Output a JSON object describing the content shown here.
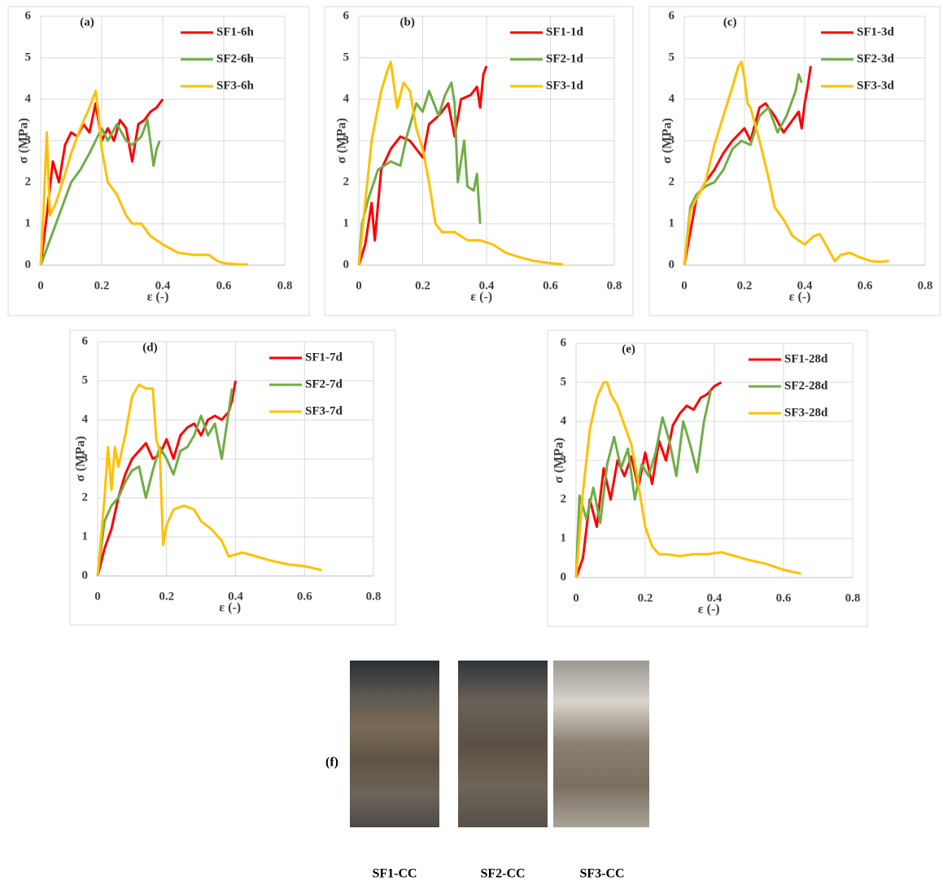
{
  "chart_data": [
    {
      "type": "line",
      "title": "(a)",
      "x_label": "ε (-)",
      "y_label": "σ (MPa)",
      "xlim": [
        0,
        0.8
      ],
      "xticks": [
        0,
        0.2,
        0.4,
        0.6,
        0.8
      ],
      "ylim": [
        0,
        6
      ],
      "yticks": [
        0,
        1,
        2,
        3,
        4,
        5,
        6
      ],
      "grid": true,
      "legend": "top-right",
      "series": [
        {
          "name": "SF1-6h",
          "color": "#ff0000",
          "x": [
            0,
            0.02,
            0.04,
            0.06,
            0.08,
            0.1,
            0.12,
            0.14,
            0.16,
            0.18,
            0.2,
            0.22,
            0.24,
            0.26,
            0.28,
            0.3,
            0.32,
            0.34,
            0.36,
            0.38,
            0.4
          ],
          "values": [
            0,
            1.2,
            2.5,
            2.0,
            2.9,
            3.2,
            3.1,
            3.4,
            3.2,
            3.9,
            3.0,
            3.3,
            3.0,
            3.5,
            3.3,
            2.5,
            3.4,
            3.5,
            3.7,
            3.8,
            4.0
          ]
        },
        {
          "name": "SF2-6h",
          "color": "#70ad47",
          "x": [
            0,
            0.02,
            0.05,
            0.08,
            0.1,
            0.13,
            0.16,
            0.18,
            0.2,
            0.22,
            0.25,
            0.28,
            0.3,
            0.33,
            0.35,
            0.37,
            0.38,
            0.39
          ],
          "values": [
            0,
            0.4,
            1.0,
            1.6,
            2.0,
            2.3,
            2.7,
            3.0,
            3.3,
            3.0,
            3.4,
            3.0,
            2.9,
            3.1,
            3.5,
            2.4,
            2.8,
            3.0
          ]
        },
        {
          "name": "SF3-6h",
          "color": "#ffc000",
          "x": [
            0,
            0.01,
            0.02,
            0.03,
            0.05,
            0.08,
            0.1,
            0.13,
            0.16,
            0.18,
            0.19,
            0.2,
            0.22,
            0.25,
            0.28,
            0.3,
            0.33,
            0.36,
            0.4,
            0.45,
            0.5,
            0.55,
            0.58,
            0.6,
            0.65,
            0.68
          ],
          "values": [
            0,
            1.4,
            3.2,
            1.2,
            1.5,
            2.2,
            2.7,
            3.3,
            3.8,
            4.2,
            3.6,
            2.8,
            2.0,
            1.7,
            1.2,
            1.0,
            1.0,
            0.7,
            0.5,
            0.3,
            0.25,
            0.25,
            0.1,
            0.05,
            0.02,
            0.02
          ]
        }
      ]
    },
    {
      "type": "line",
      "title": "(b)",
      "x_label": "ε (-)",
      "y_label": "σ (MPa)",
      "xlim": [
        0,
        0.8
      ],
      "xticks": [
        0,
        0.2,
        0.4,
        0.6,
        0.8
      ],
      "ylim": [
        0,
        6
      ],
      "yticks": [
        0,
        1,
        2,
        3,
        4,
        5,
        6
      ],
      "grid": true,
      "legend": "top-right",
      "series": [
        {
          "name": "SF1-1d",
          "color": "#ff0000",
          "x": [
            0,
            0.02,
            0.04,
            0.05,
            0.07,
            0.1,
            0.13,
            0.16,
            0.2,
            0.22,
            0.25,
            0.28,
            0.3,
            0.32,
            0.35,
            0.37,
            0.38,
            0.39,
            0.4
          ],
          "values": [
            0,
            0.5,
            1.5,
            0.6,
            2.3,
            2.8,
            3.1,
            3.0,
            2.6,
            3.4,
            3.6,
            3.9,
            3.1,
            4.0,
            4.1,
            4.3,
            3.8,
            4.6,
            4.8
          ]
        },
        {
          "name": "SF2-1d",
          "color": "#70ad47",
          "x": [
            0,
            0.01,
            0.03,
            0.06,
            0.1,
            0.13,
            0.15,
            0.18,
            0.2,
            0.22,
            0.25,
            0.27,
            0.29,
            0.3,
            0.31,
            0.33,
            0.34,
            0.36,
            0.37,
            0.38
          ],
          "values": [
            0,
            1.0,
            1.6,
            2.3,
            2.5,
            2.4,
            3.1,
            3.9,
            3.7,
            4.2,
            3.6,
            4.1,
            4.4,
            3.9,
            2.0,
            3.0,
            1.9,
            1.8,
            2.2,
            1.0
          ]
        },
        {
          "name": "SF3-1d",
          "color": "#ffc000",
          "x": [
            0,
            0.02,
            0.04,
            0.07,
            0.09,
            0.1,
            0.12,
            0.14,
            0.16,
            0.18,
            0.2,
            0.22,
            0.24,
            0.26,
            0.3,
            0.34,
            0.38,
            0.42,
            0.46,
            0.5,
            0.55,
            0.6,
            0.64
          ],
          "values": [
            0,
            1.5,
            3.0,
            4.2,
            4.7,
            4.9,
            3.8,
            4.4,
            4.2,
            3.3,
            2.8,
            2.0,
            1.0,
            0.8,
            0.8,
            0.6,
            0.6,
            0.5,
            0.3,
            0.2,
            0.1,
            0.05,
            0.02
          ]
        }
      ]
    },
    {
      "type": "line",
      "title": "(c)",
      "x_label": "ε (-)",
      "y_label": "σ (MPa)",
      "xlim": [
        0,
        0.8
      ],
      "xticks": [
        0,
        0.2,
        0.4,
        0.6,
        0.8
      ],
      "ylim": [
        0,
        6
      ],
      "yticks": [
        0,
        1,
        2,
        3,
        4,
        5,
        6
      ],
      "grid": true,
      "legend": "top-right",
      "series": [
        {
          "name": "SF1-3d",
          "color": "#ff0000",
          "x": [
            0,
            0.02,
            0.04,
            0.07,
            0.1,
            0.13,
            0.16,
            0.2,
            0.22,
            0.25,
            0.27,
            0.3,
            0.33,
            0.36,
            0.38,
            0.39,
            0.4,
            0.41,
            0.42
          ],
          "values": [
            0,
            0.8,
            1.6,
            2.0,
            2.3,
            2.7,
            3.0,
            3.3,
            3.0,
            3.8,
            3.9,
            3.6,
            3.2,
            3.5,
            3.7,
            3.3,
            3.9,
            4.3,
            4.8
          ]
        },
        {
          "name": "SF2-3d",
          "color": "#70ad47",
          "x": [
            0,
            0.02,
            0.04,
            0.07,
            0.1,
            0.13,
            0.16,
            0.19,
            0.22,
            0.25,
            0.28,
            0.31,
            0.34,
            0.37,
            0.38,
            0.39
          ],
          "values": [
            0,
            1.4,
            1.7,
            1.9,
            2.0,
            2.3,
            2.8,
            3.0,
            2.9,
            3.6,
            3.8,
            3.2,
            3.6,
            4.2,
            4.6,
            4.4
          ]
        },
        {
          "name": "SF3-3d",
          "color": "#ffc000",
          "x": [
            0,
            0.02,
            0.04,
            0.07,
            0.1,
            0.13,
            0.16,
            0.18,
            0.19,
            0.2,
            0.21,
            0.22,
            0.25,
            0.28,
            0.3,
            0.33,
            0.36,
            0.4,
            0.43,
            0.45,
            0.47,
            0.5,
            0.52,
            0.55,
            0.58,
            0.62,
            0.65,
            0.68
          ],
          "values": [
            0,
            1.3,
            1.6,
            2.0,
            2.9,
            3.6,
            4.3,
            4.8,
            4.9,
            4.5,
            3.9,
            3.8,
            3.0,
            2.1,
            1.4,
            1.1,
            0.7,
            0.5,
            0.7,
            0.75,
            0.5,
            0.1,
            0.25,
            0.3,
            0.2,
            0.1,
            0.08,
            0.1
          ]
        }
      ]
    },
    {
      "type": "line",
      "title": "(d)",
      "x_label": "ε (-)",
      "y_label": "σ (MPa)",
      "xlim": [
        0,
        0.8
      ],
      "xticks": [
        0,
        0.2,
        0.4,
        0.6,
        0.8
      ],
      "ylim": [
        0,
        6
      ],
      "yticks": [
        0,
        1,
        2,
        3,
        4,
        5,
        6
      ],
      "grid": true,
      "legend": "top-right",
      "series": [
        {
          "name": "SF1-7d",
          "color": "#ff0000",
          "x": [
            0,
            0.02,
            0.04,
            0.06,
            0.08,
            0.1,
            0.12,
            0.14,
            0.16,
            0.18,
            0.2,
            0.22,
            0.24,
            0.26,
            0.28,
            0.3,
            0.32,
            0.34,
            0.36,
            0.38,
            0.39,
            0.4
          ],
          "values": [
            0,
            0.7,
            1.2,
            2.0,
            2.6,
            3.0,
            3.2,
            3.4,
            3.0,
            3.1,
            3.5,
            3.0,
            3.6,
            3.8,
            3.9,
            3.6,
            4.0,
            4.1,
            4.0,
            4.2,
            4.5,
            5.0
          ]
        },
        {
          "name": "SF2-7d",
          "color": "#70ad47",
          "x": [
            0,
            0.02,
            0.04,
            0.06,
            0.08,
            0.1,
            0.12,
            0.14,
            0.16,
            0.18,
            0.2,
            0.22,
            0.24,
            0.26,
            0.28,
            0.3,
            0.32,
            0.34,
            0.36,
            0.38,
            0.39
          ],
          "values": [
            0,
            1.4,
            1.8,
            2.0,
            2.4,
            2.7,
            2.8,
            2.0,
            2.7,
            3.3,
            3.0,
            2.6,
            3.2,
            3.3,
            3.6,
            4.1,
            3.6,
            3.9,
            3.0,
            4.2,
            4.8
          ]
        },
        {
          "name": "SF3-7d",
          "color": "#ffc000",
          "x": [
            0,
            0.02,
            0.03,
            0.04,
            0.05,
            0.06,
            0.08,
            0.1,
            0.12,
            0.14,
            0.16,
            0.17,
            0.18,
            0.19,
            0.2,
            0.22,
            0.25,
            0.28,
            0.3,
            0.33,
            0.36,
            0.38,
            0.42,
            0.46,
            0.5,
            0.55,
            0.6,
            0.65
          ],
          "values": [
            0,
            2.0,
            3.3,
            2.2,
            3.3,
            2.8,
            3.6,
            4.6,
            4.9,
            4.8,
            4.8,
            3.5,
            3.2,
            0.8,
            1.3,
            1.7,
            1.8,
            1.7,
            1.4,
            1.2,
            0.9,
            0.5,
            0.6,
            0.5,
            0.4,
            0.3,
            0.25,
            0.15
          ]
        }
      ]
    },
    {
      "type": "line",
      "title": "(e)",
      "x_label": "ε (-)",
      "y_label": "σ (MPa)",
      "xlim": [
        0,
        0.8
      ],
      "xticks": [
        0,
        0.2,
        0.4,
        0.6,
        0.8
      ],
      "ylim": [
        0,
        6
      ],
      "yticks": [
        0,
        1,
        2,
        3,
        4,
        5,
        6
      ],
      "grid": true,
      "legend": "top-right",
      "series": [
        {
          "name": "SF1-28d",
          "color": "#ff0000",
          "x": [
            0,
            0.02,
            0.04,
            0.06,
            0.08,
            0.1,
            0.12,
            0.14,
            0.16,
            0.18,
            0.2,
            0.22,
            0.24,
            0.26,
            0.28,
            0.3,
            0.32,
            0.34,
            0.36,
            0.38,
            0.4,
            0.42
          ],
          "values": [
            0,
            0.5,
            2.0,
            1.3,
            2.8,
            2.0,
            3.0,
            2.6,
            3.1,
            2.3,
            3.2,
            2.4,
            3.5,
            3.0,
            3.9,
            4.2,
            4.4,
            4.3,
            4.6,
            4.7,
            4.9,
            5.0
          ]
        },
        {
          "name": "SF2-28d",
          "color": "#70ad47",
          "x": [
            0,
            0.01,
            0.03,
            0.05,
            0.07,
            0.09,
            0.11,
            0.13,
            0.15,
            0.17,
            0.19,
            0.21,
            0.23,
            0.25,
            0.27,
            0.29,
            0.31,
            0.33,
            0.35,
            0.37,
            0.39
          ],
          "values": [
            0,
            2.1,
            1.5,
            2.3,
            1.4,
            2.9,
            3.6,
            2.8,
            3.3,
            2.0,
            2.9,
            2.6,
            3.2,
            4.1,
            3.5,
            2.6,
            4.0,
            3.4,
            2.7,
            4.0,
            4.8
          ]
        },
        {
          "name": "SF3-28d",
          "color": "#ffc000",
          "x": [
            0,
            0.02,
            0.04,
            0.06,
            0.08,
            0.09,
            0.1,
            0.12,
            0.14,
            0.16,
            0.18,
            0.2,
            0.22,
            0.24,
            0.26,
            0.3,
            0.34,
            0.38,
            0.42,
            0.46,
            0.5,
            0.55,
            0.6,
            0.65
          ],
          "values": [
            0,
            2.2,
            3.8,
            4.6,
            5.0,
            5.0,
            4.7,
            4.4,
            3.9,
            3.4,
            2.4,
            1.3,
            0.8,
            0.6,
            0.6,
            0.55,
            0.6,
            0.6,
            0.65,
            0.55,
            0.45,
            0.35,
            0.2,
            0.1
          ]
        }
      ]
    }
  ],
  "photos": {
    "label": "(f)",
    "captions": [
      "SF1-CC",
      "SF2-CC",
      "SF3-CC"
    ]
  }
}
